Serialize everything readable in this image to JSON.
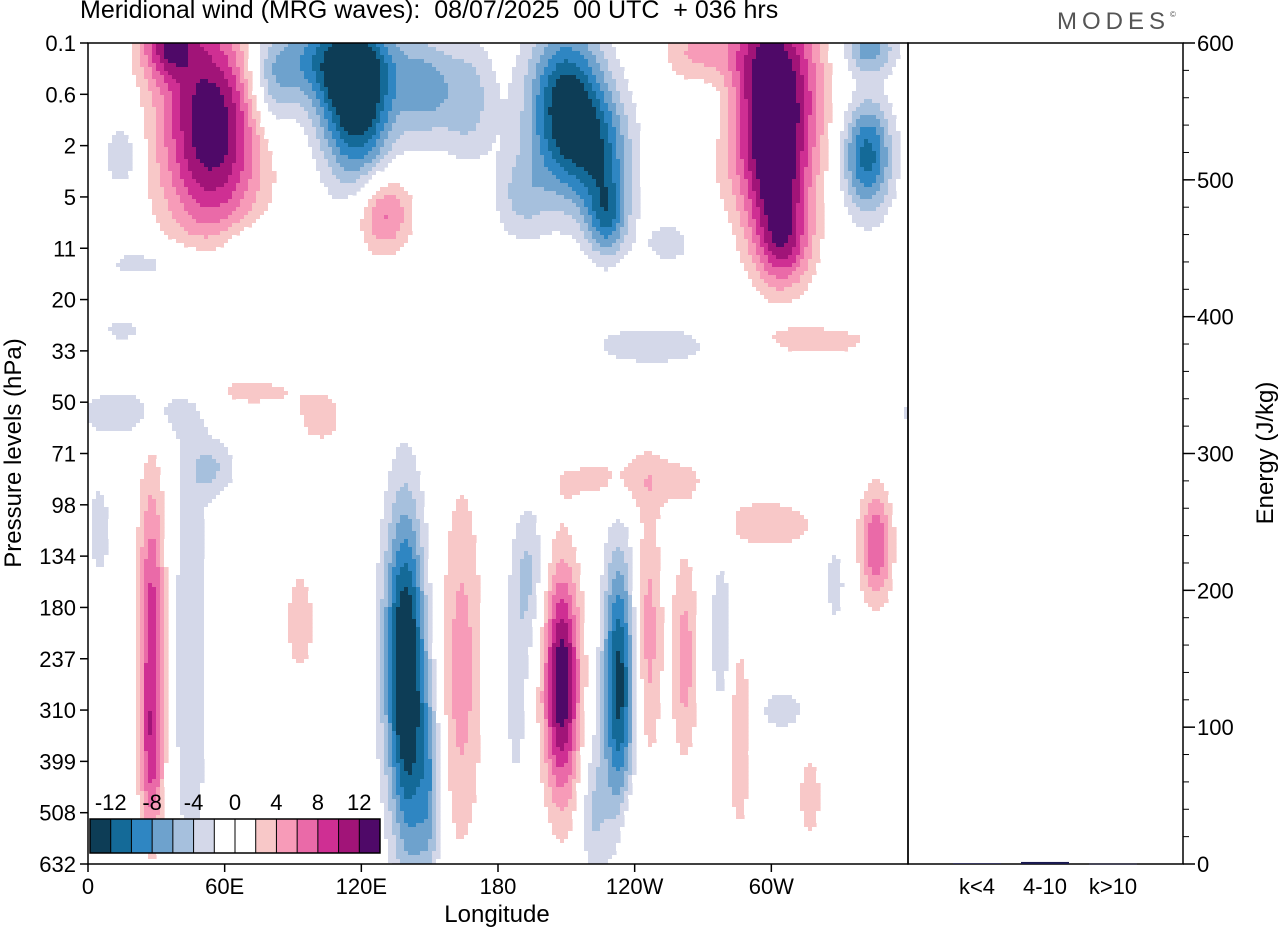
{
  "header": {
    "title": "Meridional wind (MRG waves):  08/07/2025  00 UTC  + 036 hrs",
    "logo": "MODES",
    "logo_mark": "©"
  },
  "chart_data": [
    {
      "type": "heatmap",
      "title": "Meridional wind (MRG waves):  08/07/2025  00 UTC  + 036 hrs",
      "xlabel": "Longitude",
      "ylabel": "Pressure levels (hPa)",
      "x_ticks": [
        "0",
        "60E",
        "120E",
        "180",
        "120W",
        "60W"
      ],
      "x_tick_degrees": [
        0,
        60,
        120,
        180,
        240,
        300
      ],
      "xlim": [
        0,
        360
      ],
      "y_ticks": [
        "0.1",
        "0.6",
        "2",
        "5",
        "11",
        "20",
        "33",
        "50",
        "71",
        "98",
        "134",
        "180",
        "237",
        "310",
        "399",
        "508",
        "632"
      ],
      "colorbar": {
        "labels": [
          "-12",
          "-8",
          "-4",
          "0",
          "4",
          "8",
          "12"
        ],
        "colors": [
          "#0d3d56",
          "#146a98",
          "#2f86c2",
          "#6ea2cd",
          "#a6c0dd",
          "#d4d8e9",
          "#ffffff",
          "#ffffff",
          "#f8c8c8",
          "#f79bb8",
          "#ea6aa8",
          "#cf2f93",
          "#a11478",
          "#4f0968"
        ],
        "placement": "bottom-left"
      },
      "features": [
        {
          "sign": "pos",
          "lon": 54,
          "level": 1.6,
          "dlon": 22,
          "dlev": 2.2,
          "peak": 14
        },
        {
          "sign": "pos",
          "lon": 35,
          "level": 0.0,
          "dlon": 12,
          "dlev": 0.7,
          "peak": 9
        },
        {
          "sign": "neg",
          "lon": 80,
          "level": 0.9,
          "dlon": 10,
          "dlev": 1.0,
          "peak": 5
        },
        {
          "sign": "neg",
          "lon": 118,
          "level": 1.2,
          "dlon": 16,
          "dlev": 1.5,
          "peak": 14
        },
        {
          "sign": "neg",
          "lon": 105,
          "level": 0.3,
          "dlon": 30,
          "dlev": 0.9,
          "peak": 8
        },
        {
          "sign": "neg",
          "lon": 148,
          "level": 0.9,
          "dlon": 12,
          "dlev": 1.0,
          "peak": 6
        },
        {
          "sign": "neg",
          "lon": 167,
          "level": 1.1,
          "dlon": 12,
          "dlev": 1.2,
          "peak": 5
        },
        {
          "sign": "neg",
          "lon": 210,
          "level": 1.3,
          "dlon": 17,
          "dlev": 1.6,
          "peak": 14
        },
        {
          "sign": "neg",
          "lon": 226,
          "level": 2.2,
          "dlon": 14,
          "dlev": 1.2,
          "peak": 7
        },
        {
          "sign": "neg",
          "lon": 228,
          "level": 3.4,
          "dlon": 9,
          "dlev": 0.8,
          "peak": 8
        },
        {
          "sign": "neg",
          "lon": 190,
          "level": 3.0,
          "dlon": 12,
          "dlev": 0.9,
          "peak": 4
        },
        {
          "sign": "pos",
          "lon": 130,
          "level": 3.3,
          "dlon": 12,
          "dlev": 0.8,
          "peak": 7
        },
        {
          "sign": "pos",
          "lon": 266,
          "level": 0.2,
          "dlon": 14,
          "dlev": 0.6,
          "peak": 4
        },
        {
          "sign": "pos",
          "lon": 300,
          "level": 1.0,
          "dlon": 20,
          "dlev": 2.0,
          "peak": 16
        },
        {
          "sign": "pos",
          "lon": 303,
          "level": 3.1,
          "dlon": 13,
          "dlev": 1.4,
          "peak": 8
        },
        {
          "sign": "pos",
          "lon": 306,
          "level": 4.0,
          "dlon": 12,
          "dlev": 0.8,
          "peak": 5
        },
        {
          "sign": "neg",
          "lon": 342,
          "level": 2.2,
          "dlon": 11,
          "dlev": 1.1,
          "peak": 11
        },
        {
          "sign": "neg",
          "lon": 343,
          "level": 0.1,
          "dlon": 12,
          "dlev": 0.5,
          "peak": 7
        },
        {
          "sign": "neg",
          "lon": 15,
          "level": 2.2,
          "dlon": 8,
          "dlev": 0.7,
          "peak": 4
        },
        {
          "sign": "neg",
          "lon": 28,
          "level": 4.3,
          "dlon": 25,
          "dlev": 0.4,
          "peak": 3
        },
        {
          "sign": "neg",
          "lon": 70,
          "level": 4.0,
          "dlon": 18,
          "dlev": 0.5,
          "peak": 3
        },
        {
          "sign": "neg",
          "lon": 255,
          "level": 3.9,
          "dlon": 12,
          "dlev": 0.5,
          "peak": 3
        },
        {
          "sign": "neg",
          "lon": 280,
          "level": 1.2,
          "dlon": 15,
          "dlev": 0.8,
          "peak": 3
        },
        {
          "sign": "neg",
          "lon": 15,
          "level": 5.6,
          "dlon": 10,
          "dlev": 0.25,
          "peak": 3
        },
        {
          "sign": "neg",
          "lon": 248,
          "level": 5.9,
          "dlon": 35,
          "dlev": 0.5,
          "peak": 3
        },
        {
          "sign": "pos",
          "lon": 320,
          "level": 5.8,
          "dlon": 30,
          "dlev": 0.35,
          "peak": 3
        },
        {
          "sign": "pos",
          "lon": 72,
          "level": 6.8,
          "dlon": 20,
          "dlev": 0.3,
          "peak": 3
        },
        {
          "sign": "pos",
          "lon": 102,
          "level": 7.3,
          "dlon": 12,
          "dlev": 0.6,
          "peak": 3
        },
        {
          "sign": "neg",
          "lon": 18,
          "level": 7.2,
          "dlon": 30,
          "dlev": 0.6,
          "peak": 3
        },
        {
          "sign": "neg",
          "lon": 55,
          "level": 8.3,
          "dlon": 10,
          "dlev": 0.6,
          "peak": 4
        },
        {
          "sign": "pos",
          "lon": 240,
          "level": 8.5,
          "dlon": 40,
          "dlev": 0.6,
          "peak": 3
        },
        {
          "sign": "pos",
          "lon": 300,
          "level": 9.4,
          "dlon": 25,
          "dlev": 0.6,
          "peak": 3
        },
        {
          "sign": "pos",
          "lon": 28,
          "level": 11.5,
          "dlon": 6,
          "dlev": 3.0,
          "peak": 9
        },
        {
          "sign": "pos",
          "lon": 28,
          "level": 14.0,
          "dlon": 5,
          "dlev": 1.5,
          "peak": 5
        },
        {
          "sign": "neg",
          "lon": 45,
          "level": 12.0,
          "dlon": 8,
          "dlev": 4.5,
          "peak": 4
        },
        {
          "sign": "neg",
          "lon": 5,
          "level": 9.5,
          "dlon": 6,
          "dlev": 1.2,
          "peak": 3
        },
        {
          "sign": "pos",
          "lon": 93,
          "level": 11.3,
          "dlon": 6,
          "dlev": 1.0,
          "peak": 4
        },
        {
          "sign": "neg",
          "lon": 138,
          "level": 12.0,
          "dlon": 9,
          "dlev": 3.0,
          "peak": 12
        },
        {
          "sign": "neg",
          "lon": 142,
          "level": 13.5,
          "dlon": 7,
          "dlev": 3.5,
          "peak": 6
        },
        {
          "sign": "neg",
          "lon": 150,
          "level": 14.5,
          "dlon": 5,
          "dlev": 2.0,
          "peak": 6
        },
        {
          "sign": "pos",
          "lon": 164,
          "level": 12.2,
          "dlon": 9,
          "dlev": 3.5,
          "peak": 5
        },
        {
          "sign": "neg",
          "lon": 194,
          "level": 10.3,
          "dlon": 7,
          "dlev": 1.5,
          "peak": 4
        },
        {
          "sign": "neg",
          "lon": 188,
          "level": 12.5,
          "dlon": 6,
          "dlev": 2.5,
          "peak": 3
        },
        {
          "sign": "pos",
          "lon": 208,
          "level": 12.5,
          "dlon": 8,
          "dlev": 2.2,
          "peak": 14
        },
        {
          "sign": "neg",
          "lon": 233,
          "level": 12.5,
          "dlon": 7,
          "dlev": 2.5,
          "peak": 13
        },
        {
          "sign": "pos",
          "lon": 246,
          "level": 11.5,
          "dlon": 6,
          "dlev": 2.5,
          "peak": 5
        },
        {
          "sign": "neg",
          "lon": 222,
          "level": 15.0,
          "dlon": 6,
          "dlev": 1.5,
          "peak": 4
        },
        {
          "sign": "pos",
          "lon": 238,
          "level": 15.5,
          "dlon": 5,
          "dlev": 1.0,
          "peak": 3
        },
        {
          "sign": "pos",
          "lon": 262,
          "level": 12.0,
          "dlon": 6,
          "dlev": 2.0,
          "peak": 5
        },
        {
          "sign": "neg",
          "lon": 278,
          "level": 11.5,
          "dlon": 5,
          "dlev": 1.5,
          "peak": 4
        },
        {
          "sign": "pos",
          "lon": 286,
          "level": 13.5,
          "dlon": 5,
          "dlev": 2.0,
          "peak": 4
        },
        {
          "sign": "neg",
          "lon": 305,
          "level": 13.0,
          "dlon": 12,
          "dlev": 0.5,
          "peak": 3
        },
        {
          "sign": "pos",
          "lon": 317,
          "level": 14.7,
          "dlon": 6,
          "dlev": 1.0,
          "peak": 3
        },
        {
          "sign": "pos",
          "lon": 346,
          "level": 9.8,
          "dlon": 7,
          "dlev": 1.1,
          "peak": 8
        },
        {
          "sign": "neg",
          "lon": 328,
          "level": 10.5,
          "dlon": 5,
          "dlev": 1.0,
          "peak": 3
        }
      ]
    },
    {
      "type": "bar",
      "ylabel": "Energy (J/kg)",
      "categories": [
        "k<4",
        "4-10",
        "k>10"
      ],
      "values": [
        0.5,
        1.5,
        0.2
      ],
      "ylim": [
        0,
        600
      ],
      "y_ticks": [
        "0",
        "100",
        "200",
        "300",
        "400",
        "500",
        "600"
      ],
      "bar_color": "#1a1a50"
    }
  ]
}
